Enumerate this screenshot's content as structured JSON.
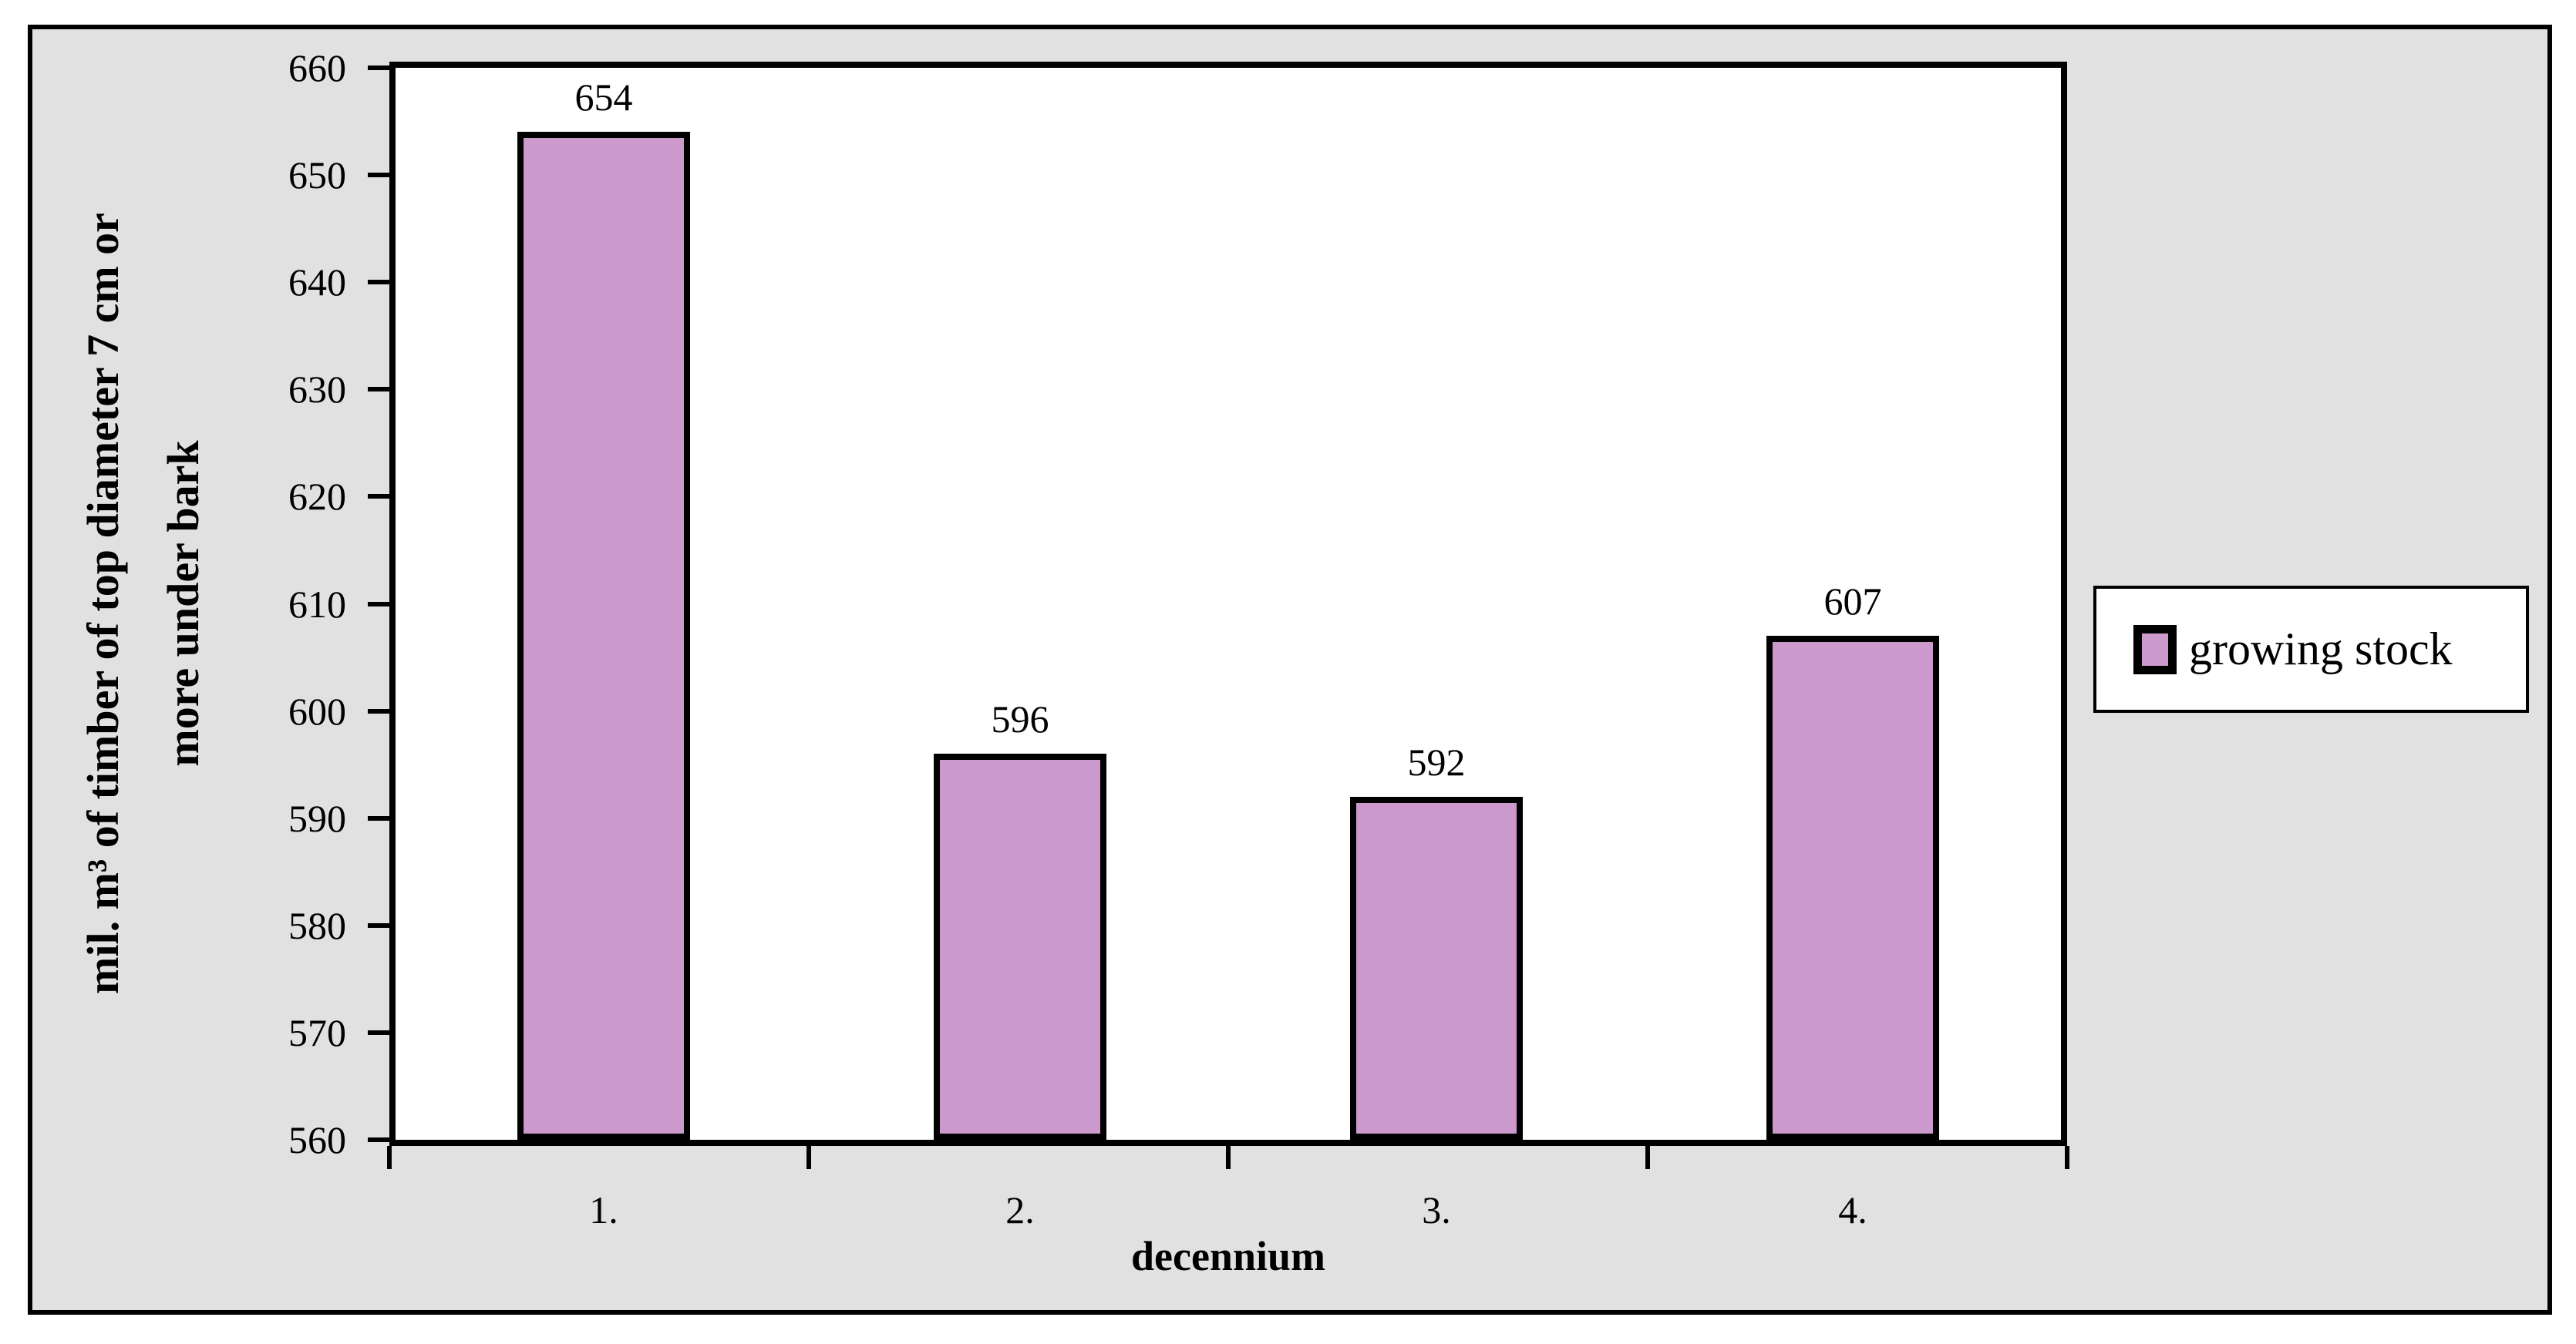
{
  "chart_data": {
    "type": "bar",
    "categories": [
      "1.",
      "2.",
      "3.",
      "4."
    ],
    "values": [
      654,
      596,
      592,
      607
    ],
    "data_labels": [
      "654",
      "596",
      "592",
      "607"
    ],
    "series": [
      {
        "name": "growing stock",
        "values": [
          654,
          596,
          592,
          607
        ]
      }
    ],
    "title": "",
    "xlabel": "decennium",
    "ylabel_line1": "mil. m³ of timber of top diameter 7 cm or",
    "ylabel_line2": "more under bark",
    "ylim": [
      560,
      660
    ],
    "ytick_step": 10,
    "yticks": [
      660,
      650,
      640,
      630,
      620,
      610,
      600,
      590,
      580,
      570,
      560
    ],
    "grid": "off",
    "legend": {
      "label": "growing stock",
      "position": "right"
    },
    "colors": {
      "bar_fill": "#CC99CC",
      "bar_border": "#000000",
      "chart_background": "#E1E1E1",
      "plot_background": "#FFFFFF",
      "text": "#000000"
    }
  }
}
